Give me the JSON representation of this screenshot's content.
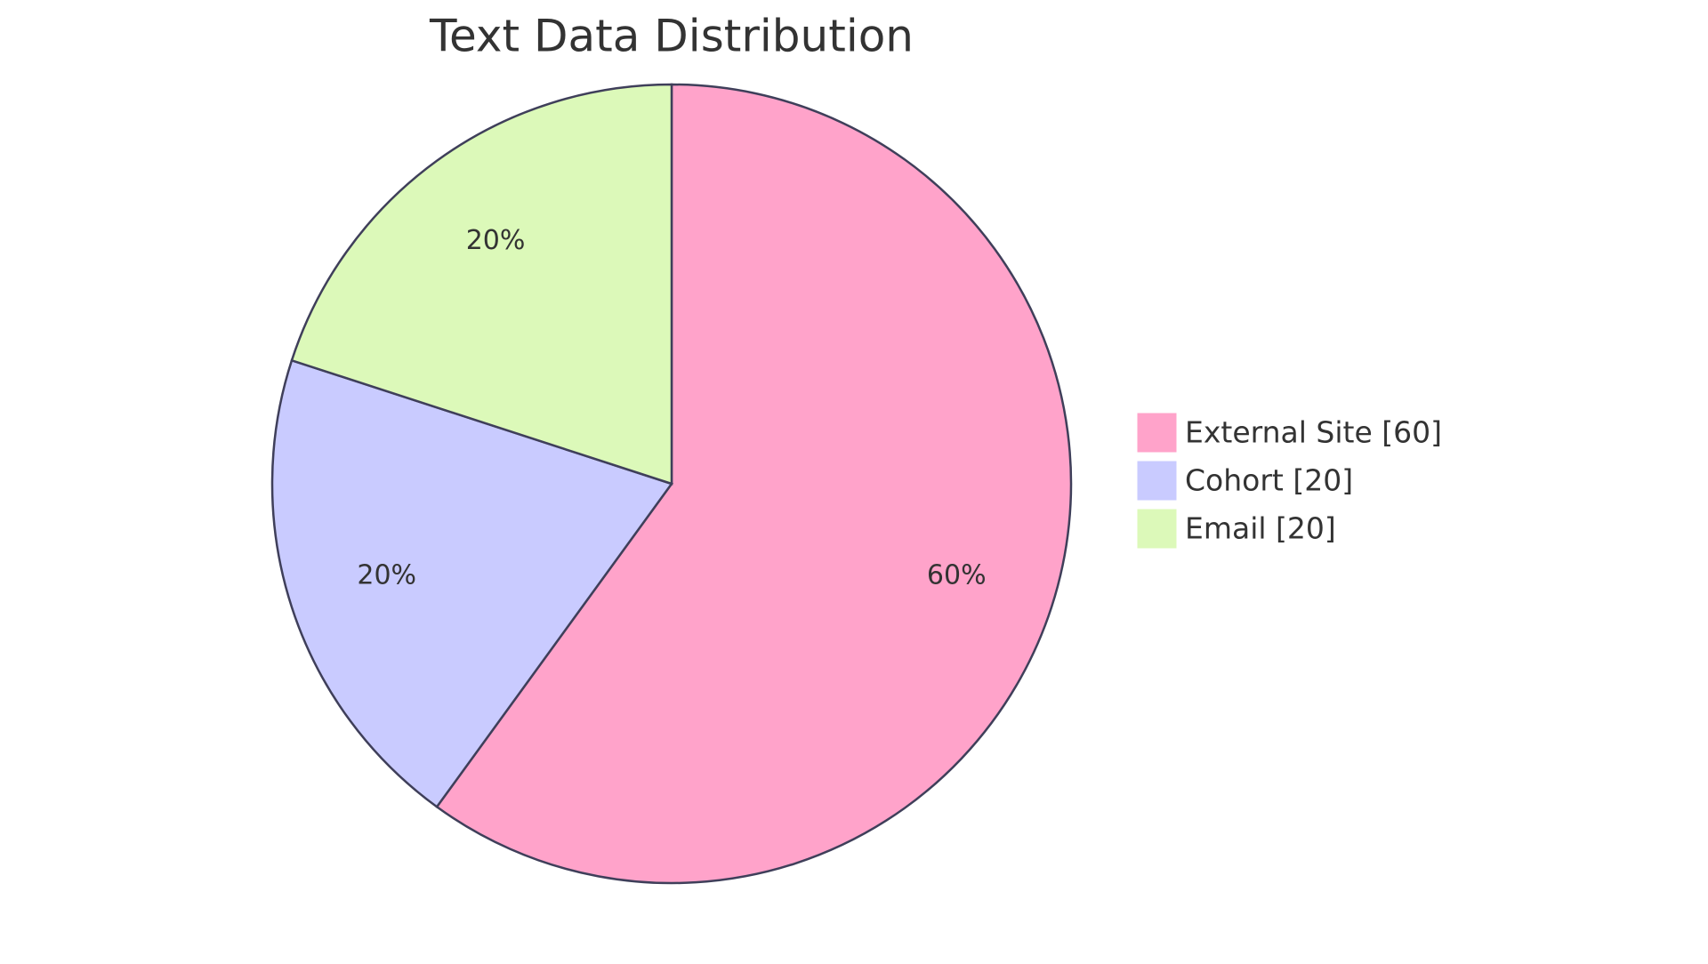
{
  "chart_data": {
    "type": "pie",
    "title": "Text Data Distribution",
    "categories": [
      "External Site [60]",
      "Cohort [20]",
      "Email [20]"
    ],
    "values": [
      60,
      20,
      20
    ],
    "value_labels": [
      "60%",
      "20%",
      "20%"
    ],
    "colors": [
      "#ffa3ca",
      "#c9cbff",
      "#dcf9b9"
    ]
  }
}
